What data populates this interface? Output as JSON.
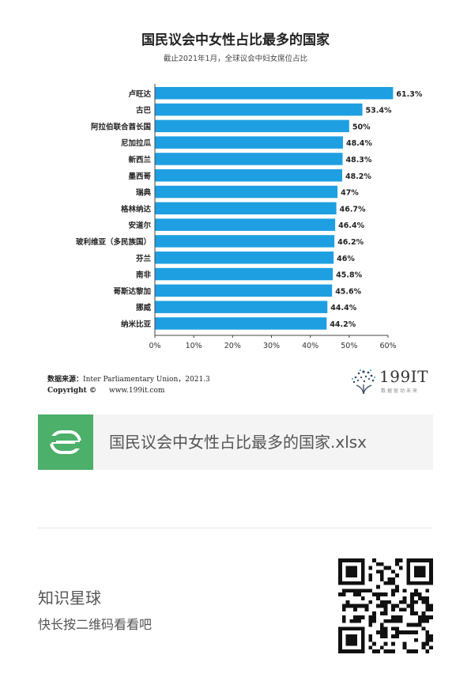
{
  "chart_data": {
    "type": "bar",
    "orientation": "horizontal",
    "title": "国民议会中女性占比最多的国家",
    "subtitle": "截止2021年1月，全球议会中妇女席位占比",
    "categories": [
      "卢旺达",
      "古巴",
      "阿拉伯联合酋长国",
      "尼加拉瓜",
      "新西兰",
      "墨西哥",
      "瑞典",
      "格林纳达",
      "安道尔",
      "玻利维亚（多民族国）",
      "芬兰",
      "南非",
      "哥斯达黎加",
      "挪威",
      "纳米比亚"
    ],
    "values": [
      61.3,
      53.4,
      50,
      48.4,
      48.3,
      48.2,
      47,
      46.7,
      46.4,
      46.2,
      46,
      45.8,
      45.6,
      44.4,
      44.2
    ],
    "value_labels": [
      "61.3%",
      "53.4%",
      "50%",
      "48.4%",
      "48.3%",
      "48.2%",
      "47%",
      "46.7%",
      "46.4%",
      "46.2%",
      "46%",
      "45.8%",
      "45.6%",
      "44.4%",
      "44.2%"
    ],
    "x_ticks": [
      "0%",
      "10%",
      "20%",
      "30%",
      "40%",
      "50%",
      "60%"
    ],
    "xlim": [
      0,
      60
    ],
    "bar_color": "#1e9fe2",
    "grid": false
  },
  "source": {
    "label": "数据来源：",
    "text": "Inter Parliamentary Union，2021.3",
    "copyright_label": "Copyright ©",
    "url": "www.199it.com"
  },
  "logo": {
    "name": "199IT",
    "tagline": "数据驱动未来",
    "icon": "dandelion-logo-icon"
  },
  "file_card": {
    "icon": "spreadsheet-s-icon",
    "icon_color": "#4caf6a",
    "filename": "国民议会中女性占比最多的国家.xlsx"
  },
  "footer": {
    "title": "知识星球",
    "hint": "快长按二维码看看吧",
    "qr_icon": "qr-code-icon"
  }
}
